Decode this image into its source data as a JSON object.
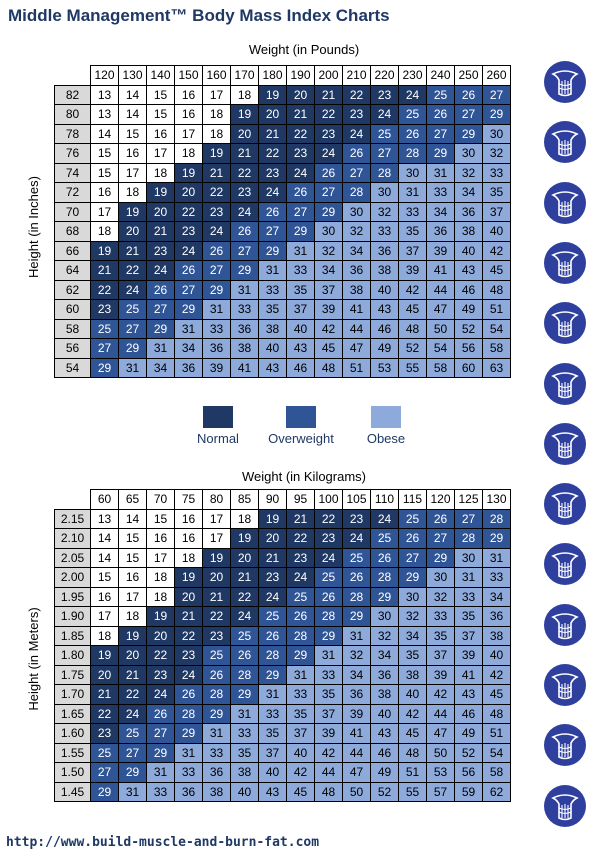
{
  "title": "Middle Management™ Body Mass Index Charts",
  "legend": [
    {
      "label": "Normal",
      "color": "#1f3864"
    },
    {
      "label": "Overweight",
      "color": "#2f5597"
    },
    {
      "label": "Obese",
      "color": "#8eaadb"
    }
  ],
  "footer_url": "http://www.build-muscle-and-burn-fat.com",
  "icon_count": 13,
  "icon_name": "body-silhouette-icon",
  "thresholds": {
    "normal_min": 19,
    "overweight_min": 25,
    "obese_min": 30
  },
  "chart_data": [
    {
      "type": "table",
      "xlabel": "Weight (in Pounds)",
      "ylabel": "Height (in Inches)",
      "columns": [
        "120",
        "130",
        "140",
        "150",
        "160",
        "170",
        "180",
        "190",
        "200",
        "210",
        "220",
        "230",
        "240",
        "250",
        "260"
      ],
      "rows": [
        "82",
        "80",
        "78",
        "76",
        "74",
        "72",
        "70",
        "68",
        "66",
        "64",
        "62",
        "60",
        "58",
        "56",
        "54"
      ],
      "values": [
        [
          13,
          14,
          15,
          16,
          17,
          18,
          19,
          20,
          21,
          22,
          23,
          24,
          25,
          26,
          27
        ],
        [
          13,
          14,
          15,
          16,
          18,
          19,
          20,
          21,
          22,
          23,
          24,
          25,
          26,
          27,
          29
        ],
        [
          14,
          15,
          16,
          17,
          18,
          20,
          21,
          22,
          23,
          24,
          25,
          26,
          27,
          29,
          30
        ],
        [
          15,
          16,
          17,
          18,
          19,
          21,
          22,
          23,
          24,
          26,
          27,
          28,
          29,
          30,
          32
        ],
        [
          15,
          17,
          18,
          19,
          21,
          22,
          23,
          24,
          26,
          27,
          28,
          30,
          31,
          32,
          33
        ],
        [
          16,
          18,
          19,
          20,
          22,
          23,
          24,
          26,
          27,
          28,
          30,
          31,
          33,
          34,
          35
        ],
        [
          17,
          19,
          20,
          22,
          23,
          24,
          26,
          27,
          29,
          30,
          32,
          33,
          34,
          36,
          37
        ],
        [
          18,
          20,
          21,
          23,
          24,
          26,
          27,
          29,
          30,
          32,
          33,
          35,
          36,
          38,
          40
        ],
        [
          19,
          21,
          23,
          24,
          26,
          27,
          29,
          31,
          32,
          34,
          36,
          37,
          39,
          40,
          42
        ],
        [
          21,
          22,
          24,
          26,
          27,
          29,
          31,
          33,
          34,
          36,
          38,
          39,
          41,
          43,
          45
        ],
        [
          22,
          24,
          26,
          27,
          29,
          31,
          33,
          35,
          37,
          38,
          40,
          42,
          44,
          46,
          48
        ],
        [
          23,
          25,
          27,
          29,
          31,
          33,
          35,
          37,
          39,
          41,
          43,
          45,
          47,
          49,
          51
        ],
        [
          25,
          27,
          29,
          31,
          33,
          36,
          38,
          40,
          42,
          44,
          46,
          48,
          50,
          52,
          54
        ],
        [
          27,
          29,
          31,
          34,
          36,
          38,
          40,
          43,
          45,
          47,
          49,
          52,
          54,
          56,
          58
        ],
        [
          29,
          31,
          34,
          36,
          39,
          41,
          43,
          46,
          48,
          51,
          53,
          55,
          58,
          60,
          63
        ]
      ]
    },
    {
      "type": "table",
      "xlabel": "Weight (in Kilograms)",
      "ylabel": "Height (in Meters)",
      "columns": [
        "60",
        "65",
        "70",
        "75",
        "80",
        "85",
        "90",
        "95",
        "100",
        "105",
        "110",
        "115",
        "120",
        "125",
        "130"
      ],
      "rows": [
        "2.15",
        "2.10",
        "2.05",
        "2.00",
        "1.95",
        "1.90",
        "1.85",
        "1.80",
        "1.75",
        "1.70",
        "1.65",
        "1.60",
        "1.55",
        "1.50",
        "1.45"
      ],
      "values": [
        [
          13,
          14,
          15,
          16,
          17,
          18,
          19,
          21,
          22,
          23,
          24,
          25,
          26,
          27,
          28
        ],
        [
          14,
          15,
          16,
          16,
          17,
          19,
          20,
          22,
          23,
          24,
          25,
          26,
          27,
          28,
          29
        ],
        [
          14,
          15,
          17,
          18,
          19,
          20,
          21,
          23,
          24,
          25,
          26,
          27,
          29,
          30,
          31
        ],
        [
          15,
          16,
          18,
          19,
          20,
          21,
          23,
          24,
          25,
          26,
          28,
          29,
          30,
          31,
          33
        ],
        [
          16,
          17,
          18,
          20,
          21,
          22,
          24,
          25,
          26,
          28,
          29,
          30,
          32,
          33,
          34
        ],
        [
          17,
          18,
          19,
          21,
          22,
          24,
          25,
          26,
          28,
          29,
          30,
          32,
          33,
          35,
          36
        ],
        [
          18,
          19,
          20,
          22,
          23,
          25,
          26,
          28,
          29,
          31,
          32,
          34,
          35,
          37,
          38
        ],
        [
          19,
          20,
          22,
          23,
          25,
          26,
          28,
          29,
          31,
          32,
          34,
          35,
          37,
          39,
          40
        ],
        [
          20,
          21,
          23,
          24,
          26,
          28,
          29,
          31,
          33,
          34,
          36,
          38,
          39,
          41,
          42
        ],
        [
          21,
          22,
          24,
          26,
          28,
          29,
          31,
          33,
          35,
          36,
          38,
          40,
          42,
          43,
          45
        ],
        [
          22,
          24,
          26,
          28,
          29,
          31,
          33,
          35,
          37,
          39,
          40,
          42,
          44,
          46,
          48
        ],
        [
          23,
          25,
          27,
          29,
          31,
          33,
          35,
          37,
          39,
          41,
          43,
          45,
          47,
          49,
          51
        ],
        [
          25,
          27,
          29,
          31,
          33,
          35,
          37,
          40,
          42,
          44,
          46,
          48,
          50,
          52,
          54
        ],
        [
          27,
          29,
          31,
          33,
          36,
          38,
          40,
          42,
          44,
          47,
          49,
          51,
          53,
          56,
          58
        ],
        [
          29,
          31,
          33,
          36,
          38,
          40,
          43,
          45,
          48,
          50,
          52,
          55,
          57,
          59,
          62
        ]
      ]
    }
  ]
}
